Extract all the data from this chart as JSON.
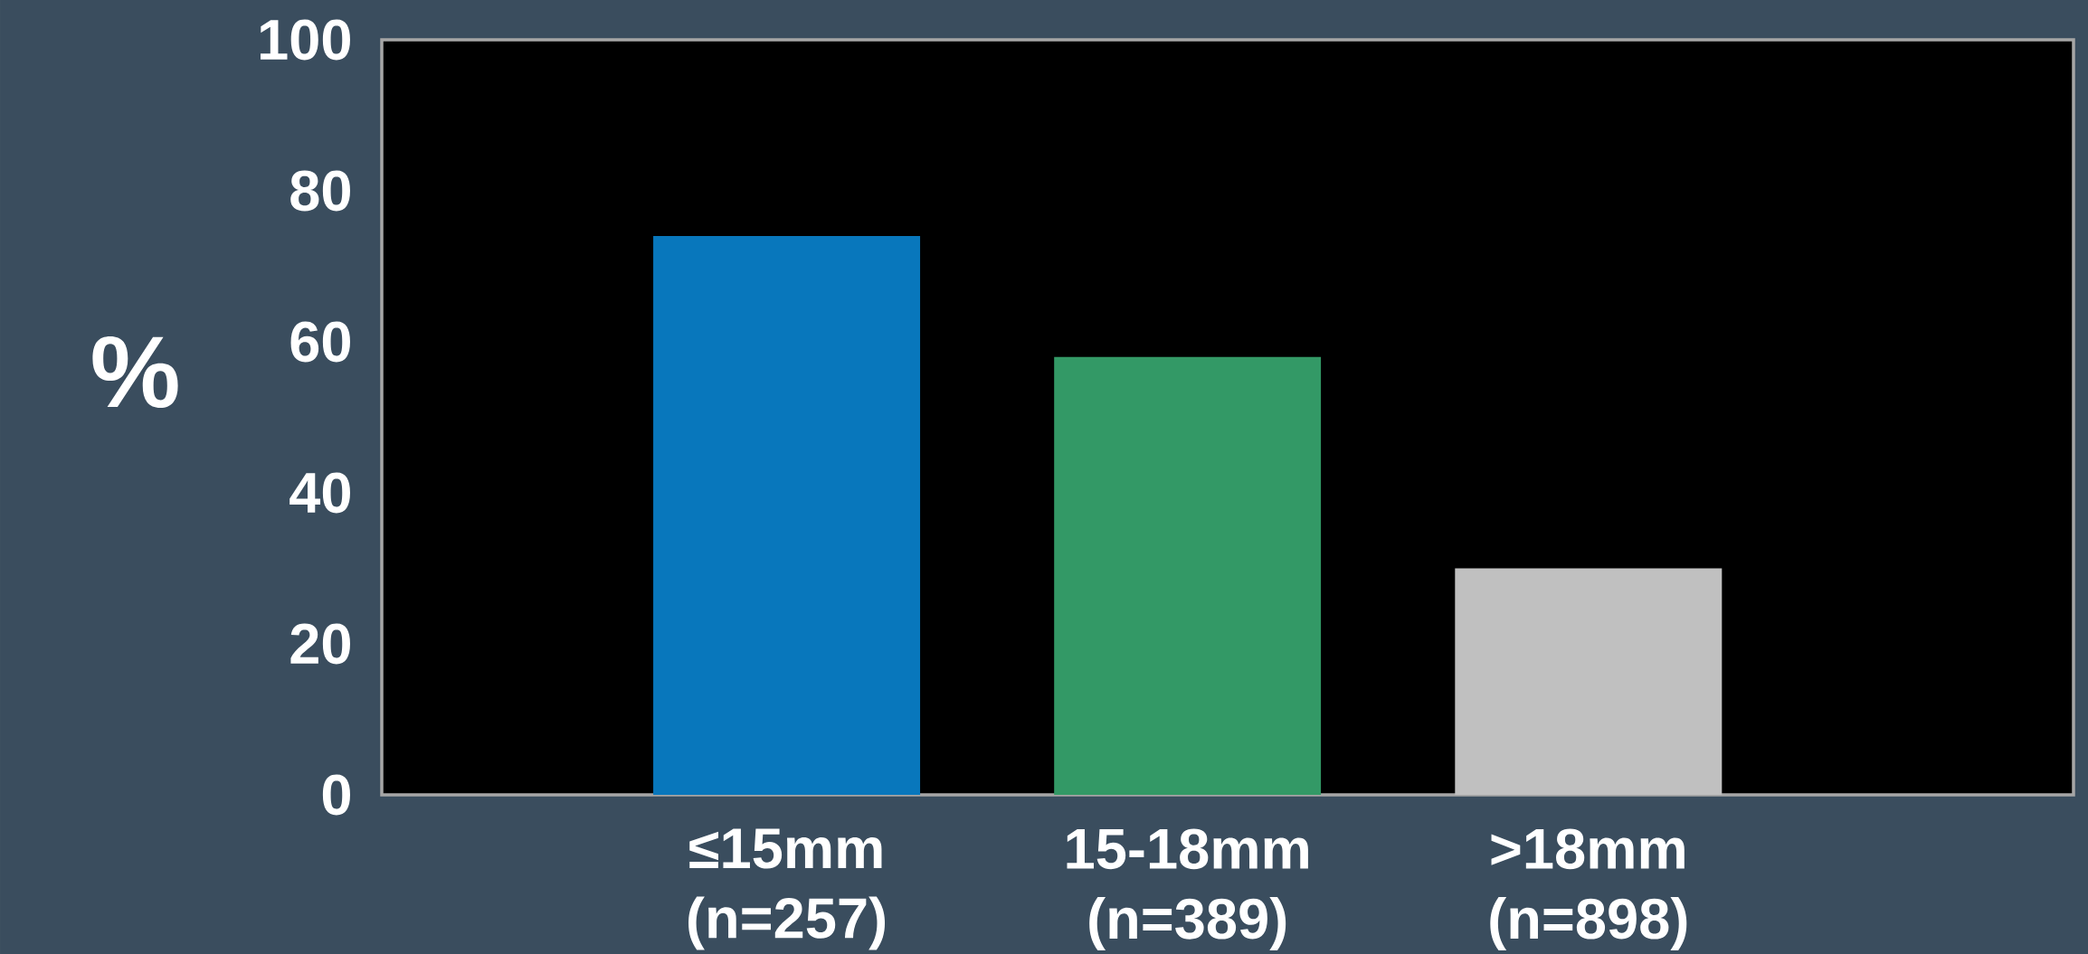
{
  "chart_data": {
    "type": "bar",
    "ylabel": "%",
    "categories": [
      "≤15mm (n=257)",
      "15-18mm (n=389)",
      ">18mm (n=898)"
    ],
    "values": [
      74,
      58,
      30
    ],
    "colors": [
      "#0877bc",
      "#339966",
      "#c0c0c0"
    ],
    "ylim": [
      0,
      100
    ],
    "yticks": [
      0,
      20,
      40,
      60,
      80,
      100
    ],
    "grid": false
  }
}
